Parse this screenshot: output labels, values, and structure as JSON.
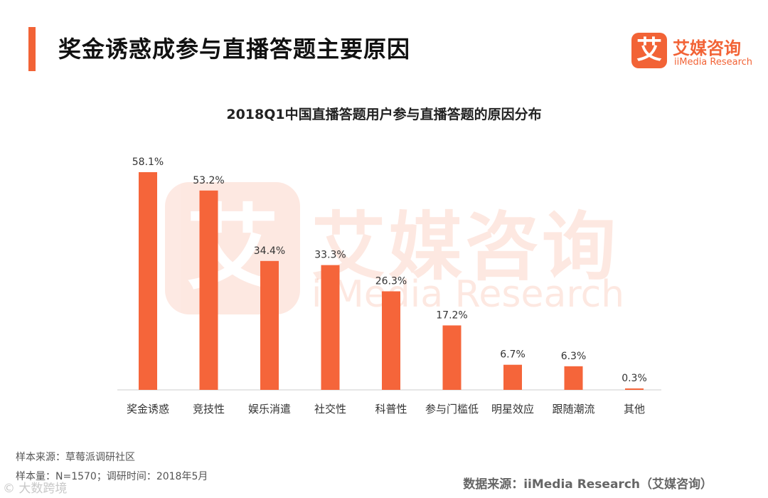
{
  "header": {
    "title": "奖金诱惑成参与直播答题主要原因"
  },
  "brand": {
    "logo_glyph": "艾",
    "name": "艾媒咨询",
    "sub": "iiMedia Research"
  },
  "watermark": {
    "logo_glyph": "艾",
    "name": "艾媒咨询",
    "sub": "iiMedia Research"
  },
  "colors": {
    "accent": "#F26336",
    "bar": "#F5653A",
    "axis": "#CCCCCC"
  },
  "chart_data": {
    "type": "bar",
    "title": "2018Q1中国直播答题用户参与直播答题的原因分布",
    "categories": [
      "奖金诱惑",
      "竞技性",
      "娱乐消遣",
      "社交性",
      "科普性",
      "参与门槛低",
      "明星效应",
      "跟随潮流",
      "其他"
    ],
    "values": [
      58.1,
      53.2,
      34.4,
      33.3,
      26.3,
      17.2,
      6.7,
      6.3,
      0.3
    ],
    "value_labels": [
      "58.1%",
      "53.2%",
      "34.4%",
      "33.3%",
      "26.3%",
      "17.2%",
      "6.7%",
      "6.3%",
      "0.3%"
    ],
    "ylim": [
      0,
      60
    ],
    "xlabel": "",
    "ylabel": "",
    "grid": false
  },
  "footer": {
    "sample_source": "样本来源：草莓派调研社区",
    "sample_size": "样本量：N=1570；调研时间：2018年5月",
    "data_source": "数据来源：iiMedia Research（艾媒咨询）",
    "corner_mark": "© 大数跨境"
  }
}
